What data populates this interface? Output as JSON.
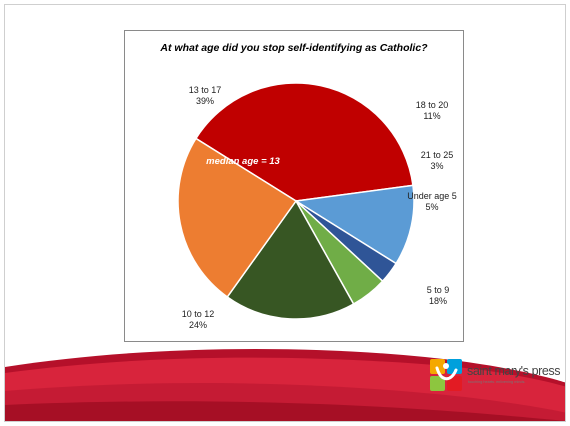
{
  "chart_data": {
    "type": "pie",
    "title": "At what age did you stop self-identifying as Catholic?",
    "annotation": "median age = 13",
    "slices": [
      {
        "label": "13 to 17",
        "value": 39,
        "value_label": "39%",
        "color": "#c00000"
      },
      {
        "label": "18 to 20",
        "value": 11,
        "value_label": "11%",
        "color": "#5b9bd5"
      },
      {
        "label": "21 to 25",
        "value": 3,
        "value_label": "3%",
        "color": "#2f5597"
      },
      {
        "label": "Under age 5",
        "value": 5,
        "value_label": "5%",
        "color": "#70ad47"
      },
      {
        "label": "5 to 9",
        "value": 18,
        "value_label": "18%",
        "color": "#375623"
      },
      {
        "label": "10 to 12",
        "value": 24,
        "value_label": "24%",
        "color": "#ed7d31"
      }
    ]
  },
  "logo": {
    "name": "saint mary's press",
    "tagline": "touching hearts. enlivening minds.",
    "colors": [
      "#e31b23",
      "#f5a800",
      "#00a0dc",
      "#8dc63f"
    ]
  },
  "colors": {
    "footer_red": "#c8102e",
    "footer_dark": "#7a0a1d"
  }
}
